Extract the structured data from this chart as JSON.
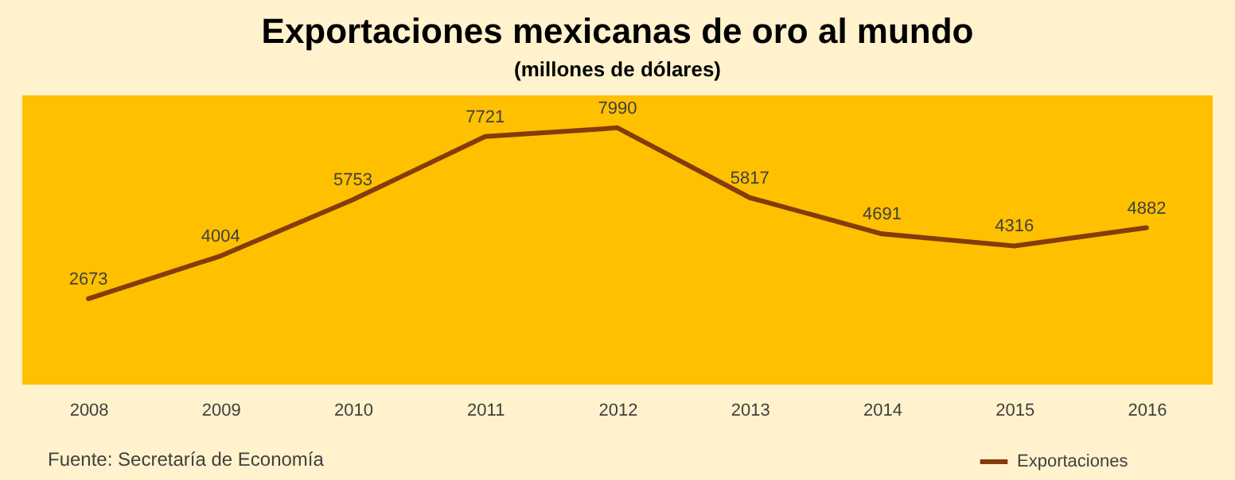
{
  "chart_data": {
    "type": "line",
    "title": "Exportaciones mexicanas de oro al mundo",
    "subtitle": "(millones de dólares)",
    "categories": [
      "2008",
      "2009",
      "2010",
      "2011",
      "2012",
      "2013",
      "2014",
      "2015",
      "2016"
    ],
    "series": [
      {
        "name": "Exportaciones",
        "color": "#843c0c",
        "values": [
          2673,
          4004,
          5753,
          7721,
          7990,
          5817,
          4691,
          4316,
          4882
        ]
      }
    ],
    "ylim": [
      0,
      9000
    ],
    "data_labels": true,
    "grid": false,
    "legend": "bottom right",
    "marker": "none",
    "line_style": "solid",
    "tick_labels": "x",
    "annotations": [
      "Fuente: Secretaría de Economía"
    ]
  }
}
